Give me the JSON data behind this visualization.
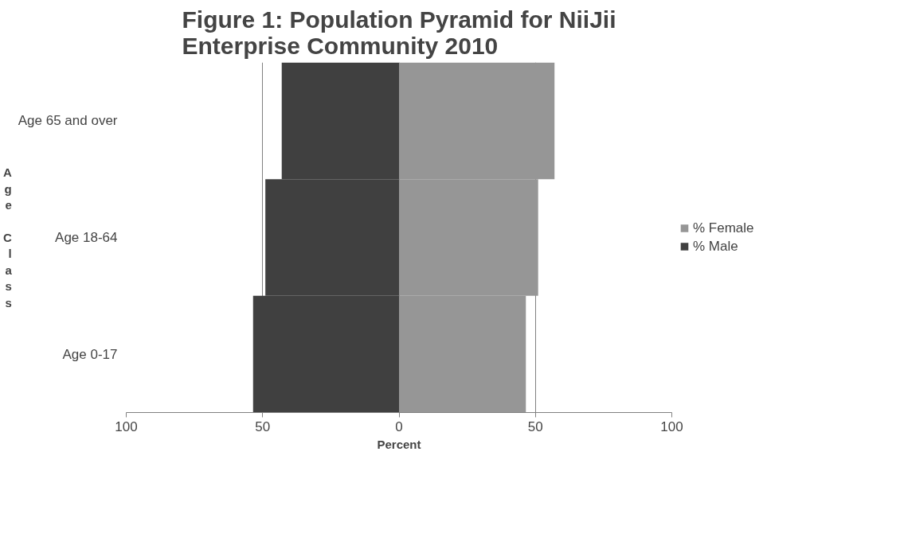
{
  "chart_data": {
    "type": "bar",
    "orientation": "horizontal",
    "title": "Figure 1: Population Pyramid for NiiJii\nEnterprise Community 2010",
    "xlabel": "Percent",
    "ylabel": "Age Class",
    "categories": [
      "Age 65 and over",
      "Age 18-64",
      "Age 0-17"
    ],
    "series": [
      {
        "name": "% Female",
        "color": "#969696",
        "values": [
          57,
          51,
          46.5
        ]
      },
      {
        "name": "% Male",
        "color": "#404040",
        "values": [
          -43,
          -49,
          -53.5
        ]
      }
    ],
    "xlim": [
      -100,
      100
    ],
    "xticks": [
      {
        "value": -100,
        "label": "100"
      },
      {
        "value": -50,
        "label": "50"
      },
      0,
      50,
      100
    ],
    "grid": "x",
    "legend": "right",
    "stacked": true
  }
}
